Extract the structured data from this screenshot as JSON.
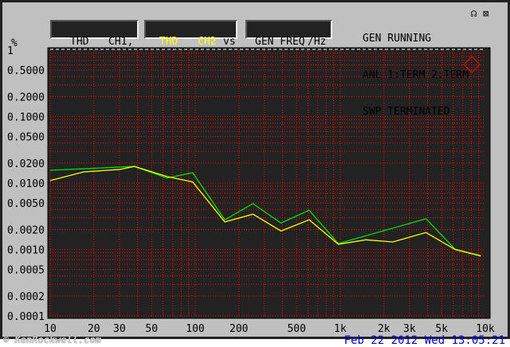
{
  "header": {
    "readout_labels": [
      "THD",
      "CH1,",
      "THD",
      "CH2",
      "vs",
      "GEN FREQ",
      "/Hz"
    ],
    "status": [
      "GEN RUNNING",
      "ANL 1:TERM 2:TERM",
      "SWP TERMINATED"
    ],
    "icons": [
      "headphones-icon",
      "speaker-muted-icon"
    ],
    "unit": "%"
  },
  "footer": {
    "watermark": "© KenRockwell.com",
    "datetime": "Feb 22 2012 Wed 13:05:21"
  },
  "colors": {
    "ch1": "#00e000",
    "ch2": "#ffff00",
    "grid": "#ff0000",
    "plot_bg": "#222222",
    "date": "#0000dd"
  },
  "chart_data": {
    "type": "line",
    "xscale": "log",
    "yscale": "log",
    "xlim": [
      10,
      10000
    ],
    "ylim": [
      0.0001,
      1
    ],
    "grid": true,
    "ylabel": "%",
    "xlabel": "GEN FREQ /Hz",
    "yticks": [
      "1",
      "0.5000",
      "0.2000",
      "0.1000",
      "0.0500",
      "0.0200",
      "0.0100",
      "0.0050",
      "0.0020",
      "0.0010",
      "0.0005",
      "0.0002",
      "0.0001"
    ],
    "ytick_values": [
      1,
      0.5,
      0.2,
      0.1,
      0.05,
      0.02,
      0.01,
      0.005,
      0.002,
      0.001,
      0.0005,
      0.0002,
      0.0001
    ],
    "xticks": [
      "10",
      "20",
      "30",
      "50",
      "100",
      "200",
      "500",
      "1k",
      "2k",
      "3k",
      "5k",
      "10k"
    ],
    "xtick_values": [
      10,
      20,
      30,
      50,
      100,
      200,
      500,
      1000,
      2000,
      3000,
      5000,
      10000
    ],
    "series": [
      {
        "name": "THD CH1",
        "color": "#00e000",
        "x": [
          10,
          17,
          38,
          64,
          96,
          160,
          250,
          390,
          610,
          970,
          3900,
          6200,
          9300
        ],
        "y": [
          0.0156,
          0.0164,
          0.0178,
          0.0119,
          0.0143,
          0.0028,
          0.0049,
          0.0025,
          0.0039,
          0.00123,
          0.0029,
          0.00101,
          0.00081
        ]
      },
      {
        "name": "THD CH2",
        "color": "#ffff00",
        "x": [
          10,
          17,
          30,
          38,
          64,
          96,
          160,
          250,
          390,
          610,
          970,
          1500,
          2300,
          3900,
          6200,
          9300
        ],
        "y": [
          0.0109,
          0.0147,
          0.016,
          0.0178,
          0.0125,
          0.0104,
          0.0026,
          0.0034,
          0.0019,
          0.0028,
          0.0012,
          0.0014,
          0.0013,
          0.0018,
          0.001,
          0.0008
        ]
      }
    ]
  }
}
